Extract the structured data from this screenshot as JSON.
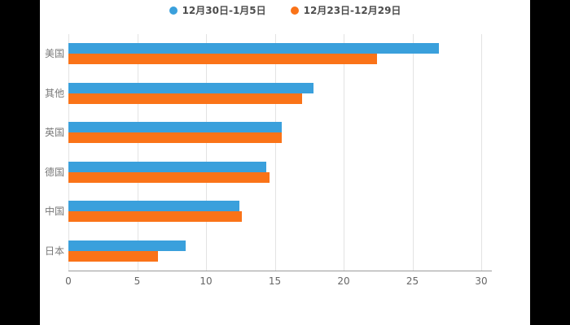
{
  "chart_data": {
    "type": "bar",
    "orientation": "horizontal",
    "title": "",
    "xlabel": "",
    "ylabel": "",
    "categories": [
      "美国",
      "其他",
      "英国",
      "德国",
      "中国",
      "日本"
    ],
    "series": [
      {
        "name": "12月30日-1月5日",
        "color": "#3AA0DC",
        "values": [
          26.9,
          17.8,
          15.5,
          14.4,
          12.4,
          8.5
        ]
      },
      {
        "name": "12月23日-12月29日",
        "color": "#FA7318",
        "values": [
          22.4,
          17.0,
          15.5,
          14.6,
          12.6,
          6.5
        ]
      }
    ],
    "xlim": [
      0,
      30
    ],
    "xticks": [
      0,
      5,
      10,
      15,
      20,
      25,
      30
    ],
    "grid": true,
    "legend_position": "top",
    "background_color": "#ffffff",
    "frame_color": "#000000"
  }
}
